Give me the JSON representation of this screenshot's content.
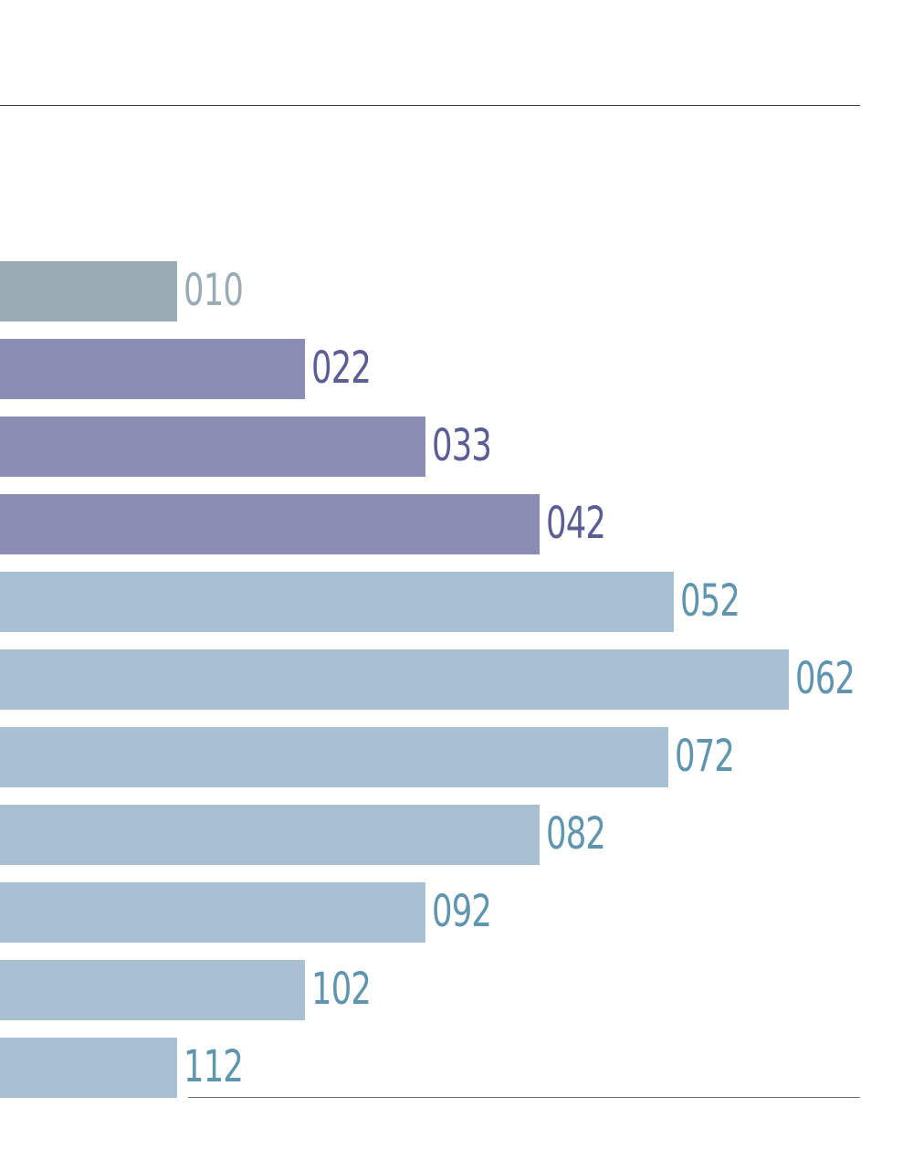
{
  "chart_data": {
    "type": "bar",
    "orientation": "horizontal",
    "categories": [
      "010",
      "022",
      "033",
      "042",
      "052",
      "062",
      "072",
      "082",
      "092",
      "102",
      "112"
    ],
    "values": [
      194,
      334,
      466,
      591,
      738,
      864,
      732,
      591,
      466,
      334,
      194
    ],
    "title": "",
    "xlabel": "",
    "ylabel": "",
    "xlim": [
      0,
      1000
    ],
    "grid": false
  },
  "colors": {
    "grey_bar": "#9aabb3",
    "grey_label": "#9aabb3",
    "purple_bar": "#8c8db5",
    "purple_label": "#5a5e94",
    "blue_bar": "#a8c0d2",
    "blue_label": "#5f95ae"
  },
  "bar_groups": [
    "grey",
    "purple",
    "purple",
    "purple",
    "blue",
    "blue",
    "blue",
    "blue",
    "blue",
    "blue",
    "blue"
  ]
}
